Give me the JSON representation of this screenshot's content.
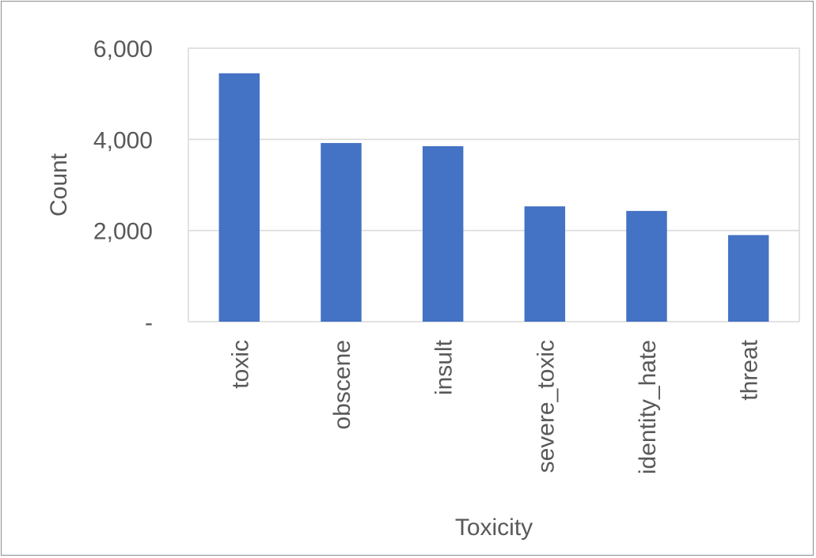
{
  "chart_data": {
    "type": "bar",
    "title": "",
    "xlabel": "Toxicity",
    "ylabel": "Count",
    "categories": [
      "toxic",
      "obscene",
      "insult",
      "severe_toxic",
      "identity_hate",
      "threat"
    ],
    "values": [
      5450,
      3920,
      3850,
      2530,
      2430,
      1900
    ],
    "ylim": [
      0,
      6000
    ],
    "yticks": [
      0,
      2000,
      4000,
      6000
    ],
    "ytick_labels": [
      "-",
      "2,000",
      "4,000",
      "6,000"
    ],
    "grid": true,
    "legend": "none",
    "bar_color": "#4472C4",
    "grid_color": "#d9d9d9",
    "text_color": "#595959"
  }
}
